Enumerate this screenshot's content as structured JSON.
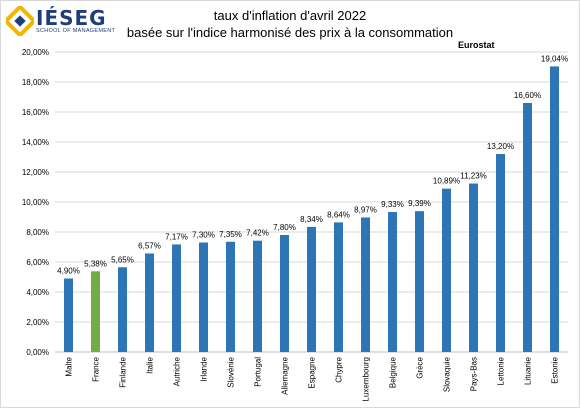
{
  "header": {
    "logo_text": "IÉSEG",
    "logo_subtitle": "SCHOOL OF MANAGEMENT",
    "source": "Eurostat"
  },
  "chart_data": {
    "type": "bar",
    "title": "taux d'inflation d'avril 2022",
    "subtitle": "basée sur l'indice harmonisé des prix à la consommation",
    "xlabel": "",
    "ylabel": "",
    "categories": [
      "Malte",
      "France",
      "Finlande",
      "Italie",
      "Autriche",
      "Irlande",
      "Slovénie",
      "Portugal",
      "Allemagne",
      "Espagne",
      "Chypre",
      "Luxembourg",
      "Belgique",
      "Grèce",
      "Slovaquie",
      "Pays-Bas",
      "Lettonie",
      "Lituanie",
      "Estonie"
    ],
    "values": [
      4.9,
      5.38,
      5.65,
      6.57,
      7.17,
      7.3,
      7.35,
      7.42,
      7.8,
      8.34,
      8.64,
      8.97,
      9.33,
      9.39,
      10.89,
      11.23,
      13.2,
      16.6,
      19.04
    ],
    "value_labels": [
      "4,90%",
      "5,38%",
      "5,65%",
      "6,57%",
      "7,17%",
      "7,30%",
      "7,35%",
      "7,42%",
      "7,80%",
      "8,34%",
      "8,64%",
      "8,97%",
      "9,33%",
      "9,39%",
      "10,89%",
      "11,23%",
      "13,20%",
      "16,60%",
      "19,04%"
    ],
    "ylim": [
      0,
      20
    ],
    "yticks": [
      0,
      2,
      4,
      6,
      8,
      10,
      12,
      14,
      16,
      18,
      20
    ],
    "ytick_labels": [
      "0,00%",
      "2,00%",
      "4,00%",
      "6,00%",
      "8,00%",
      "10,00%",
      "12,00%",
      "14,00%",
      "16,00%",
      "18,00%",
      "20,00%"
    ],
    "grid": true,
    "bar_color": "#2e75b6",
    "highlight_index": 1,
    "highlight_color": "#70ad47"
  }
}
